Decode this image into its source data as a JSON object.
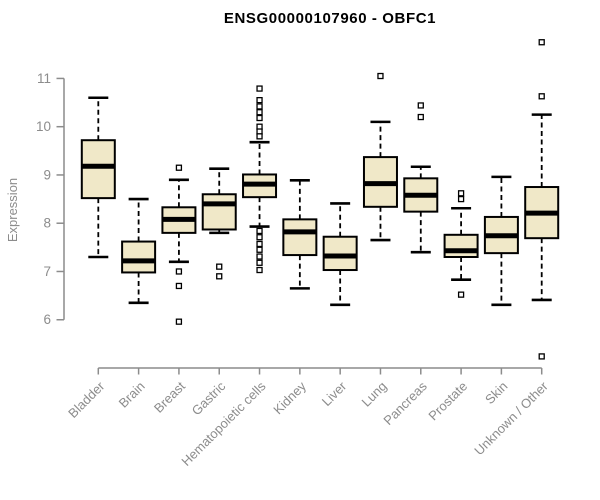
{
  "chart_data": {
    "type": "boxplot",
    "title": "ENSG00000107960 - OBFC1",
    "ylabel": "Expression",
    "yticks": [
      6,
      7,
      8,
      9,
      10,
      11
    ],
    "ylim_display": [
      5.0,
      11.9
    ],
    "grid": false,
    "legend": "none",
    "colors": {
      "box_fill": "#F0E8C8",
      "box_border": "#000000",
      "median": "#000000",
      "axis": "#8C8C8C",
      "title": "#000000"
    },
    "categories": [
      "Bladder",
      "Brain",
      "Breast",
      "Gastric",
      "Hematopoietic cells",
      "Kidney",
      "Liver",
      "Lung",
      "Pancreas",
      "Prostate",
      "Skin",
      "Unknown / Other"
    ],
    "series": [
      {
        "name": "Bladder",
        "low": 7.3,
        "q1": 8.52,
        "median": 9.18,
        "q3": 9.72,
        "high": 10.6,
        "outliers": []
      },
      {
        "name": "Brain",
        "low": 6.35,
        "q1": 6.98,
        "median": 7.22,
        "q3": 7.62,
        "high": 8.5,
        "outliers": []
      },
      {
        "name": "Breast",
        "low": 7.2,
        "q1": 7.8,
        "median": 8.08,
        "q3": 8.33,
        "high": 8.9,
        "outliers": [
          9.15,
          7.0,
          6.7,
          5.96
        ]
      },
      {
        "name": "Gastric",
        "low": 7.8,
        "q1": 7.87,
        "median": 8.4,
        "q3": 8.6,
        "high": 9.13,
        "outliers": [
          7.1,
          6.9
        ]
      },
      {
        "name": "Hematopoietic cells",
        "low": 7.93,
        "q1": 8.54,
        "median": 8.81,
        "q3": 9.01,
        "high": 9.68,
        "outliers": [
          10.79,
          10.55,
          10.42,
          10.3,
          10.18,
          10.0,
          9.9,
          9.8,
          7.84,
          7.71,
          7.57,
          7.45,
          7.31,
          7.18,
          7.03
        ]
      },
      {
        "name": "Kidney",
        "low": 6.65,
        "q1": 7.34,
        "median": 7.82,
        "q3": 8.08,
        "high": 8.89,
        "outliers": []
      },
      {
        "name": "Liver",
        "low": 6.31,
        "q1": 7.03,
        "median": 7.32,
        "q3": 7.72,
        "high": 8.41,
        "outliers": []
      },
      {
        "name": "Lung",
        "low": 7.65,
        "q1": 8.34,
        "median": 8.82,
        "q3": 9.37,
        "high": 10.1,
        "outliers": [
          11.05
        ]
      },
      {
        "name": "Pancreas",
        "low": 7.4,
        "q1": 8.24,
        "median": 8.58,
        "q3": 8.93,
        "high": 9.17,
        "outliers": [
          10.44,
          10.2
        ]
      },
      {
        "name": "Prostate",
        "low": 6.83,
        "q1": 7.3,
        "median": 7.43,
        "q3": 7.76,
        "high": 8.31,
        "outliers": [
          8.62,
          8.5,
          6.52
        ]
      },
      {
        "name": "Skin",
        "low": 6.31,
        "q1": 7.38,
        "median": 7.74,
        "q3": 8.13,
        "high": 8.96,
        "outliers": []
      },
      {
        "name": "Unknown / Other",
        "low": 6.41,
        "q1": 7.69,
        "median": 8.21,
        "q3": 8.75,
        "high": 10.25,
        "outliers": [
          11.75,
          10.63,
          5.24
        ]
      }
    ]
  }
}
